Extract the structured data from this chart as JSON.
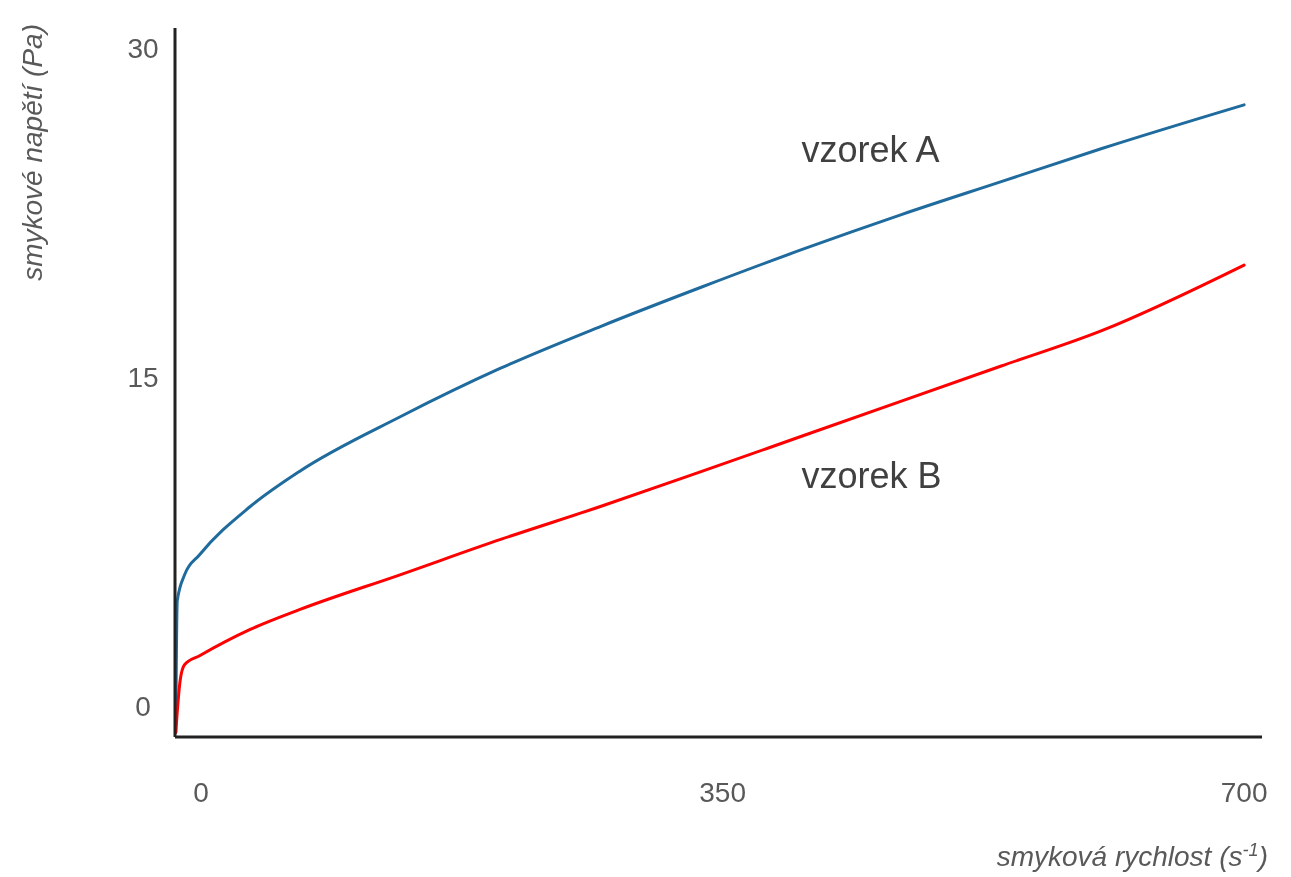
{
  "chart_data": {
    "type": "line",
    "xlabel": "smyková rychlost (s$^{-1}$)",
    "ylabel": "smykové napětí (Pa)",
    "xlim": [
      -17.5,
      712
    ],
    "ylim": [
      -1.4,
      30.9
    ],
    "xticks": [
      0,
      350,
      700
    ],
    "yticks": [
      0,
      15,
      30
    ],
    "grid": false,
    "marker": "none",
    "line_style": "solid",
    "series": [
      {
        "name": "vzorek A",
        "color": "#1f6b9e",
        "x": [
          -17,
          -16,
          -11,
          -1,
          33,
          66,
          134,
          201,
          268,
          336,
          403,
          470,
          537,
          604,
          700
        ],
        "values": [
          -1.2,
          4.8,
          6.0,
          6.9,
          9.1,
          10.7,
          13.2,
          15.4,
          17.3,
          19.1,
          20.8,
          22.4,
          23.9,
          25.4,
          27.4
        ]
      },
      {
        "name": "vzorek B",
        "color": "#ff0000",
        "x": [
          -17,
          -14,
          -11,
          -1,
          33,
          66,
          134,
          201,
          268,
          336,
          403,
          470,
          537,
          604,
          700
        ],
        "values": [
          -1.2,
          1.2,
          1.9,
          2.3,
          3.5,
          4.4,
          6.0,
          7.6,
          9.1,
          10.7,
          12.3,
          13.9,
          15.5,
          17.1,
          20.1
        ]
      }
    ]
  }
}
